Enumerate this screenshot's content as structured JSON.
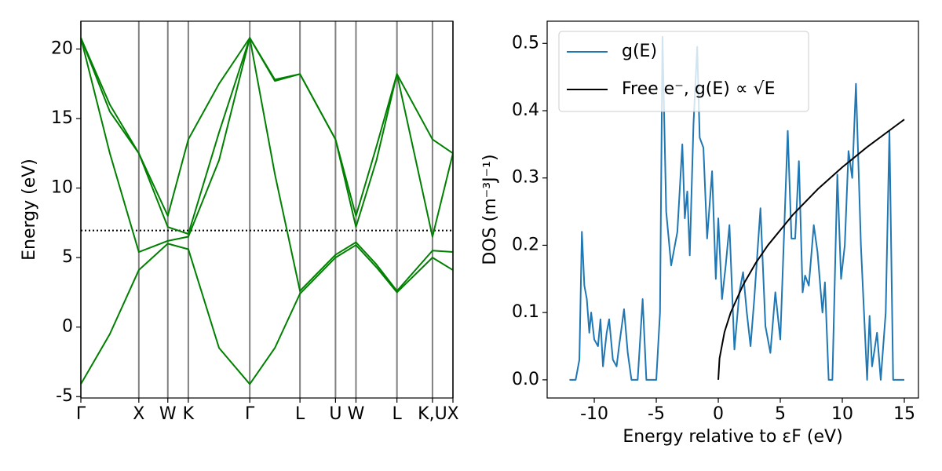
{
  "chart_data": [
    {
      "type": "line",
      "ylabel": "Energy (eV)",
      "xlim": [
        0,
        6.419
      ],
      "ylim": [
        -5.1,
        22
      ],
      "xticks": [
        {
          "value": 0,
          "label": "Γ"
        },
        {
          "value": 1,
          "label": "X"
        },
        {
          "value": 1.5,
          "label": "W"
        },
        {
          "value": 1.854,
          "label": "K"
        },
        {
          "value": 2.914,
          "label": "Γ"
        },
        {
          "value": 3.78,
          "label": "L"
        },
        {
          "value": 4.393,
          "label": "U"
        },
        {
          "value": 4.746,
          "label": "W"
        },
        {
          "value": 5.453,
          "label": "L"
        },
        {
          "value": 6.066,
          "label": "K,U"
        },
        {
          "value": 6.419,
          "label": "X"
        }
      ],
      "yticks": [
        -5,
        0,
        5,
        10,
        15,
        20
      ],
      "xgrid": true,
      "grid_color": "#808080",
      "fermi_level": 6.95,
      "x": [
        0,
        0.5,
        1,
        1.5,
        1.854,
        2.384,
        2.914,
        3.347,
        3.78,
        4.393,
        4.746,
        5.1,
        5.453,
        6.066,
        6.419
      ],
      "series": [
        {
          "color": "#008000",
          "values": [
            -4.1,
            -0.5,
            4.1,
            6.0,
            5.6,
            -1.5,
            -4.1,
            -1.5,
            2.4,
            5.0,
            5.9,
            4.3,
            2.5,
            5.0,
            4.1
          ]
        },
        {
          "color": "#008000",
          "values": [
            20.8,
            12.5,
            5.4,
            6.2,
            6.5,
            12.0,
            20.8,
            11.0,
            2.6,
            5.2,
            6.1,
            4.5,
            2.6,
            5.5,
            5.4
          ]
        },
        {
          "color": "#008000",
          "values": [
            20.8,
            15.5,
            12.5,
            7.2,
            6.7,
            14.0,
            20.8,
            17.8,
            18.2,
            13.5,
            7.2,
            12.0,
            18.2,
            6.5,
            12.5
          ]
        },
        {
          "color": "#008000",
          "values": [
            20.8,
            16.0,
            12.5,
            8.0,
            13.5,
            17.5,
            20.8,
            17.7,
            18.2,
            13.5,
            8.0,
            13.0,
            18.2,
            13.5,
            12.5
          ]
        }
      ]
    },
    {
      "type": "line",
      "xlabel": "Energy relative to εF (eV)",
      "ylabel": "DOS (m⁻³J⁻¹)",
      "xlim": [
        -13.8,
        16.14
      ],
      "ylim": [
        -0.027,
        0.533
      ],
      "xticks": [
        -10,
        -5,
        0,
        5,
        10,
        15
      ],
      "yticks": [
        {
          "value": 0,
          "label": "0.0"
        },
        0.1,
        0.2,
        0.3,
        0.4,
        0.5
      ],
      "legend": "upper left",
      "series": [
        {
          "name": "g(E)",
          "color": "#1f77b4",
          "x": [
            -12,
            -11.5,
            -11.2,
            -11.0,
            -10.8,
            -10.6,
            -10.4,
            -10.25,
            -10.0,
            -9.7,
            -9.5,
            -9.3,
            -9.0,
            -8.8,
            -8.5,
            -8.2,
            -8.0,
            -7.6,
            -7.3,
            -7.0,
            -6.5,
            -6.1,
            -5.8,
            -5.0,
            -4.7,
            -4.5,
            -4.2,
            -3.8,
            -3.3,
            -2.9,
            -2.7,
            -2.5,
            -2.3,
            -2.0,
            -1.7,
            -1.5,
            -1.2,
            -0.9,
            -0.5,
            -0.2,
            0.0,
            0.3,
            0.6,
            0.9,
            1.3,
            1.7,
            2.0,
            2.3,
            2.6,
            2.9,
            3.4,
            3.8,
            4.2,
            4.6,
            5.0,
            5.6,
            5.9,
            6.2,
            6.5,
            6.8,
            7.0,
            7.3,
            7.7,
            8.0,
            8.4,
            8.6,
            8.9,
            9.2,
            9.6,
            9.9,
            10.2,
            10.5,
            10.8,
            11.1,
            11.5,
            12.0,
            12.2,
            12.4,
            12.8,
            13.1,
            13.5,
            13.8,
            14.1,
            15.0
          ],
          "values": [
            0,
            0,
            0.03,
            0.22,
            0.14,
            0.12,
            0.07,
            0.1,
            0.06,
            0.05,
            0.09,
            0.02,
            0.07,
            0.09,
            0.03,
            0.02,
            0.05,
            0.105,
            0.04,
            0.0,
            0.0,
            0.12,
            0.0,
            0.0,
            0.1,
            0.51,
            0.25,
            0.17,
            0.22,
            0.35,
            0.24,
            0.28,
            0.185,
            0.38,
            0.495,
            0.36,
            0.345,
            0.21,
            0.31,
            0.15,
            0.24,
            0.12,
            0.17,
            0.23,
            0.045,
            0.13,
            0.16,
            0.1,
            0.05,
            0.12,
            0.255,
            0.08,
            0.04,
            0.13,
            0.06,
            0.37,
            0.21,
            0.21,
            0.325,
            0.13,
            0.155,
            0.14,
            0.23,
            0.19,
            0.1,
            0.145,
            0.0,
            0.0,
            0.305,
            0.15,
            0.2,
            0.34,
            0.3,
            0.44,
            0.2,
            0.0,
            0.095,
            0.02,
            0.07,
            0.0,
            0.1,
            0.37,
            0.0,
            0.0
          ]
        },
        {
          "name": "Free e⁻, g(E) ∝ √E",
          "color": "#000000",
          "x": [
            0,
            0.1,
            0.5,
            1,
            2,
            3,
            4,
            6,
            8,
            10,
            12,
            15
          ],
          "values": [
            0,
            0.032,
            0.071,
            0.1,
            0.141,
            0.173,
            0.2,
            0.245,
            0.283,
            0.316,
            0.346,
            0.387
          ]
        }
      ]
    }
  ]
}
